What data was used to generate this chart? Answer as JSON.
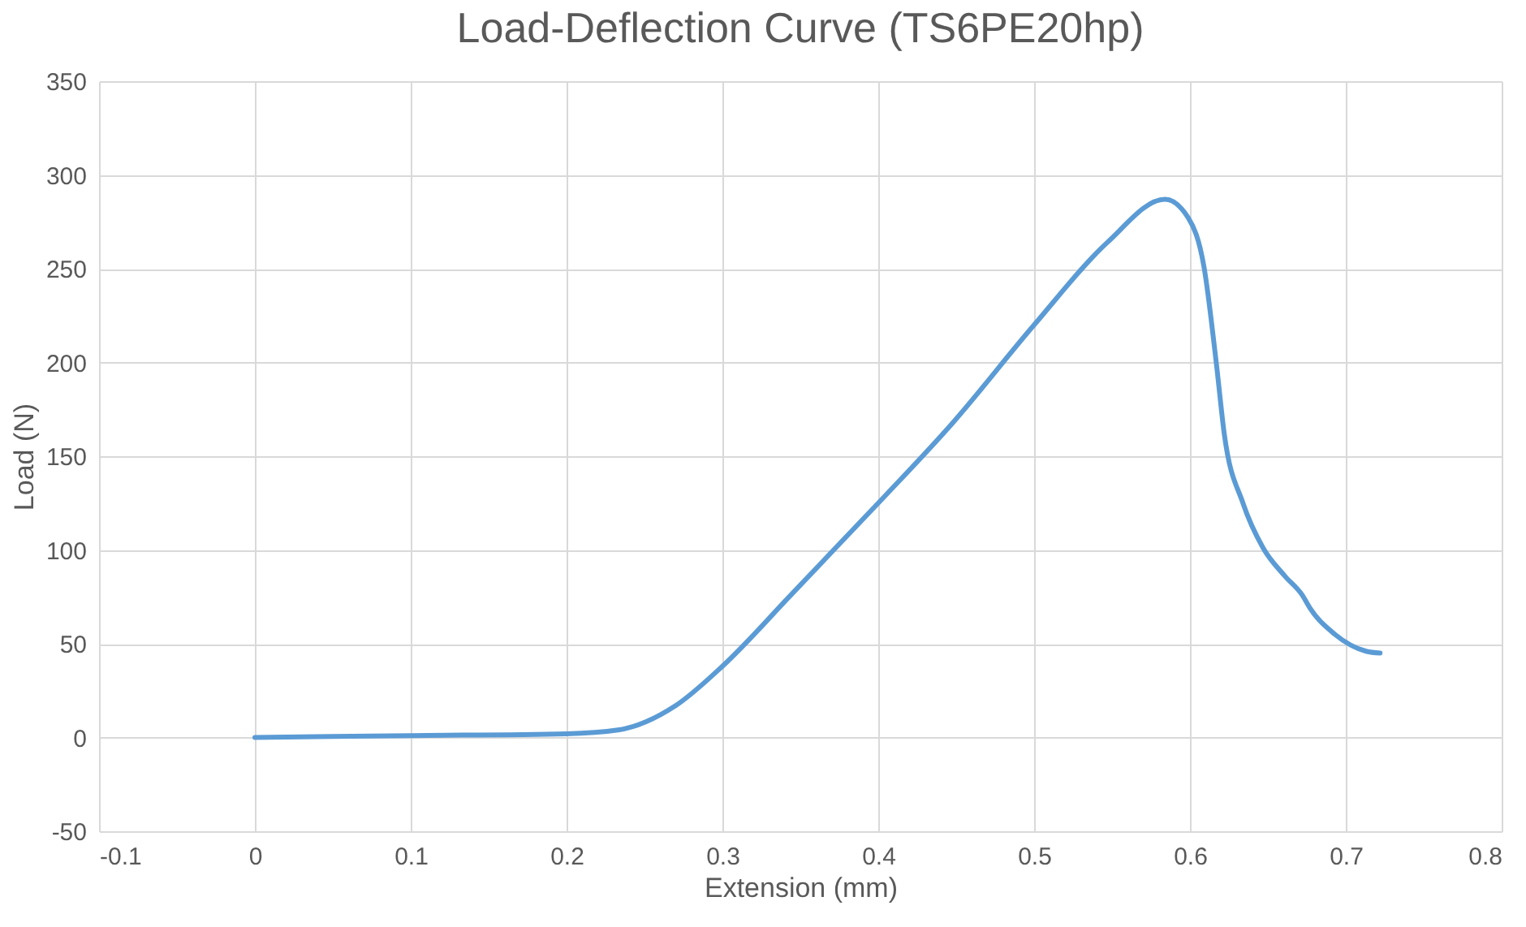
{
  "chart_data": {
    "type": "line",
    "title": "Load-Deflection Curve (TS6PE20hp)",
    "xlabel": "Extension (mm)",
    "ylabel": "Load (N)",
    "xlim": [
      -0.1,
      0.8
    ],
    "xticks": [
      -0.1,
      0,
      0.1,
      0.2,
      0.3,
      0.4,
      0.5,
      0.6,
      0.7,
      0.8
    ],
    "ylim": [
      -50,
      350
    ],
    "yticks": [
      -50,
      0,
      50,
      100,
      150,
      200,
      250,
      300,
      350
    ],
    "grid": true,
    "marker": "none",
    "line_style": "solid",
    "series": [
      {
        "color": "#5b9bd5",
        "x": [
          0,
          0.1,
          0.2,
          0.233,
          0.27,
          0.3,
          0.344,
          0.4,
          0.448,
          0.5,
          0.547,
          0.584,
          0.599,
          0.609,
          0.617,
          0.622,
          0.634,
          0.647,
          0.661,
          0.672,
          0.677,
          0.693,
          0.713,
          0.722
        ],
        "values": [
          0,
          1,
          2,
          4,
          17,
          38,
          76,
          125,
          168,
          220,
          264,
          287,
          277,
          251,
          199,
          162,
          125,
          101,
          86,
          76,
          69,
          55,
          46,
          45
        ]
      }
    ]
  }
}
